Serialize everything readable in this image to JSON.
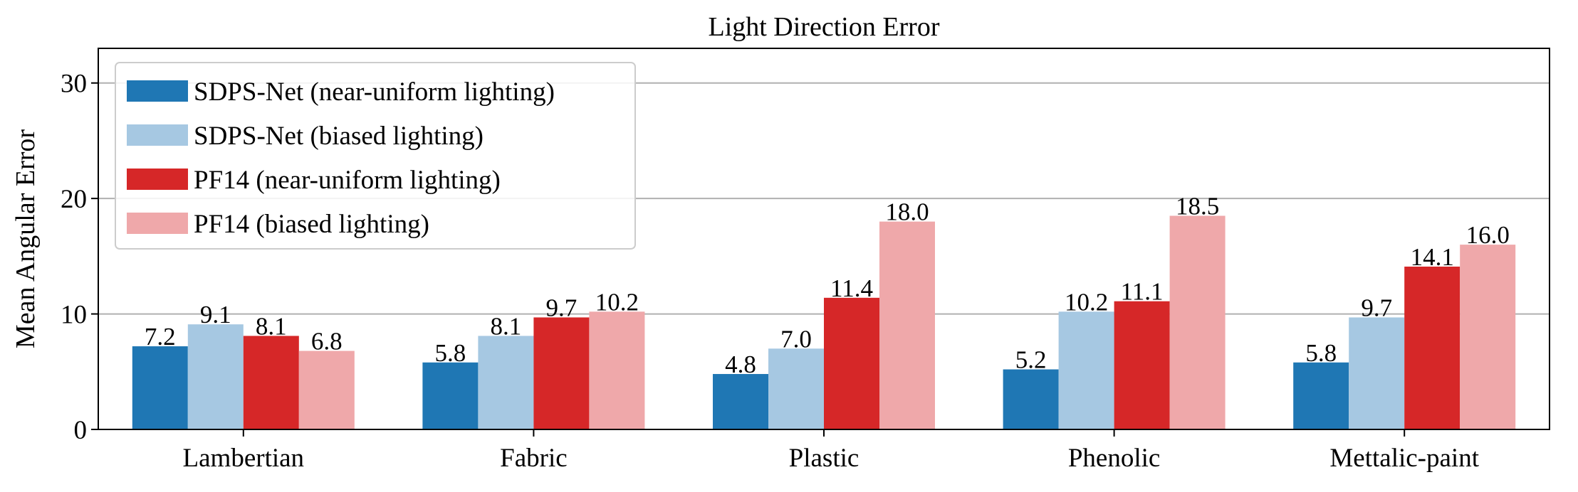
{
  "chart_data": {
    "type": "bar",
    "title": "Light Direction Error",
    "xlabel": "",
    "ylabel": "Mean Angular Error",
    "categories": [
      "Lambertian",
      "Fabric",
      "Plastic",
      "Phenolic",
      "Mettalic-paint"
    ],
    "series": [
      {
        "name": "SDPS-Net (near-uniform lighting)",
        "color": "#1f77b4",
        "values": [
          7.2,
          5.8,
          4.8,
          5.2,
          5.8
        ],
        "labels": [
          "7.2",
          "5.8",
          "4.8",
          "5.2",
          "5.8"
        ]
      },
      {
        "name": "SDPS-Net (biased lighting)",
        "color": "#a6c8e2",
        "values": [
          9.1,
          8.1,
          7.0,
          10.2,
          9.7
        ],
        "labels": [
          "9.1",
          "8.1",
          "7.0",
          "10.2",
          "9.7"
        ]
      },
      {
        "name": "PF14 (near-uniform lighting)",
        "color": "#d62728",
        "values": [
          8.1,
          9.7,
          11.4,
          11.1,
          14.1
        ],
        "labels": [
          "8.1",
          "9.7",
          "11.4",
          "11.1",
          "14.1"
        ]
      },
      {
        "name": "PF14 (biased lighting)",
        "color": "#efa8aa",
        "values": [
          6.8,
          10.2,
          18.0,
          18.5,
          16.0
        ],
        "labels": [
          "6.8",
          "10.2",
          "18.0",
          "18.5",
          "16.0"
        ]
      }
    ],
    "ylim": [
      0,
      33
    ],
    "yticks": [
      0,
      10,
      20,
      30
    ],
    "grid": "horizontal",
    "legend": "top-left"
  }
}
